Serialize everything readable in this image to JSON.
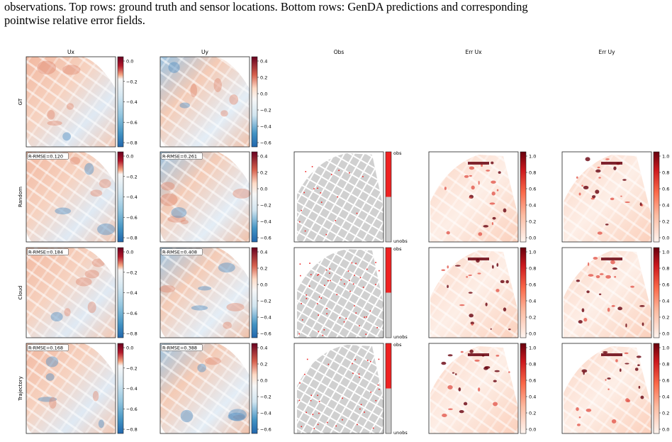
{
  "caption": {
    "line1": "observations. Top rows: ground truth and sensor locations. Bottom rows: GenDA predictions and corresponding",
    "line2": "pointwise relative error fields."
  },
  "columns": [
    "Ux",
    "Uy",
    "Obs",
    "Err Ux",
    "Err Uy"
  ],
  "rows": [
    {
      "label": "GT",
      "rmse_ux": "",
      "rmse_uy": "",
      "obs_density": 0
    },
    {
      "label": "Random",
      "rmse_ux": "R-RMSE=0.120",
      "rmse_uy": "R-RMSE=0.261",
      "obs_density": 0.2
    },
    {
      "label": "Cloud",
      "rmse_ux": "R-RMSE=0.184",
      "rmse_uy": "R-RMSE=0.408",
      "obs_density": 0.6
    },
    {
      "label": "Trajectory",
      "rmse_ux": "R-RMSE=0.168",
      "rmse_uy": "R-RMSE=0.388",
      "obs_density": 0.4
    }
  ],
  "colorbars": {
    "ux_ticks": [
      "0.0",
      "−0.2",
      "−0.4",
      "−0.6",
      "−0.8"
    ],
    "uy_ticks": [
      "0.4",
      "0.2",
      "0.0",
      "−0.2",
      "−0.4",
      "−0.6"
    ],
    "obs_ticks": [
      "obs",
      "unobs"
    ],
    "err_ticks": [
      "1.0",
      "0.8",
      "0.6",
      "0.4",
      "0.2",
      "0.0"
    ]
  },
  "colors": {
    "div_positive": "#b2182b",
    "div_negative": "#2166ac",
    "obs": "#ee2222",
    "unobs": "#cccccc",
    "err_high": "#67000d"
  }
}
